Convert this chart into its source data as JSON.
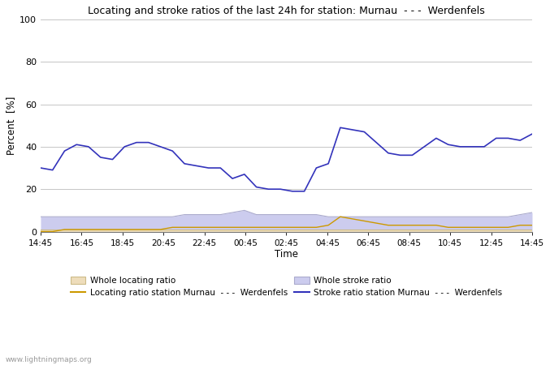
{
  "title": "Locating and stroke ratios of the last 24h for station: Murnau  - - -  Werdenfels",
  "xlabel": "Time",
  "ylabel": "Percent  [%]",
  "watermark": "www.lightningmaps.org",
  "x_labels": [
    "14:45",
    "16:45",
    "18:45",
    "20:45",
    "22:45",
    "00:45",
    "02:45",
    "04:45",
    "06:45",
    "08:45",
    "10:45",
    "12:45",
    "14:45"
  ],
  "ylim": [
    0,
    100
  ],
  "yticks": [
    0,
    20,
    40,
    60,
    80,
    100
  ],
  "grid_color": "#bbbbbb",
  "stroke_ratio_station": [
    30,
    29,
    38,
    41,
    40,
    35,
    34,
    40,
    42,
    42,
    40,
    38,
    32,
    31,
    30,
    30,
    25,
    27,
    21,
    20,
    20,
    19,
    19,
    30,
    32,
    49,
    48,
    47,
    42,
    37,
    36,
    36,
    40,
    44,
    41,
    40,
    40,
    40,
    44,
    44,
    43,
    46
  ],
  "locating_ratio_station": [
    0,
    0,
    1,
    1,
    1,
    1,
    1,
    1,
    1,
    1,
    1,
    2,
    2,
    2,
    2,
    2,
    2,
    2,
    2,
    2,
    2,
    2,
    2,
    2,
    3,
    7,
    6,
    5,
    4,
    3,
    3,
    3,
    3,
    3,
    2,
    2,
    2,
    2,
    2,
    2,
    3,
    3
  ],
  "whole_stroke_fill": [
    7,
    7,
    7,
    7,
    7,
    7,
    7,
    7,
    7,
    7,
    7,
    7,
    8,
    8,
    8,
    8,
    9,
    10,
    8,
    8,
    8,
    8,
    8,
    8,
    7,
    7,
    7,
    7,
    7,
    7,
    7,
    7,
    7,
    7,
    7,
    7,
    7,
    7,
    7,
    7,
    8,
    9
  ],
  "whole_locating_fill": [
    1,
    1,
    1,
    1,
    1,
    1,
    1,
    1,
    1,
    1,
    1,
    1,
    1,
    1,
    1,
    1,
    1,
    1,
    1,
    1,
    1,
    1,
    1,
    1,
    1,
    1,
    1,
    1,
    1,
    1,
    1,
    1,
    1,
    1,
    1,
    1,
    1,
    1,
    1,
    1,
    1,
    1
  ],
  "stroke_station_color": "#3333bb",
  "locating_station_color": "#cc9900",
  "whole_stroke_fill_color": "#ccccee",
  "whole_locating_fill_color": "#eeddbb",
  "whole_stroke_line_color": "#aaaacc",
  "whole_locating_line_color": "#ccbb88",
  "legend_labels": [
    "Whole locating ratio",
    "Locating ratio station Murnau  - - -  Werdenfels",
    "Whole stroke ratio",
    "Stroke ratio station Murnau  - - -  Werdenfels"
  ]
}
